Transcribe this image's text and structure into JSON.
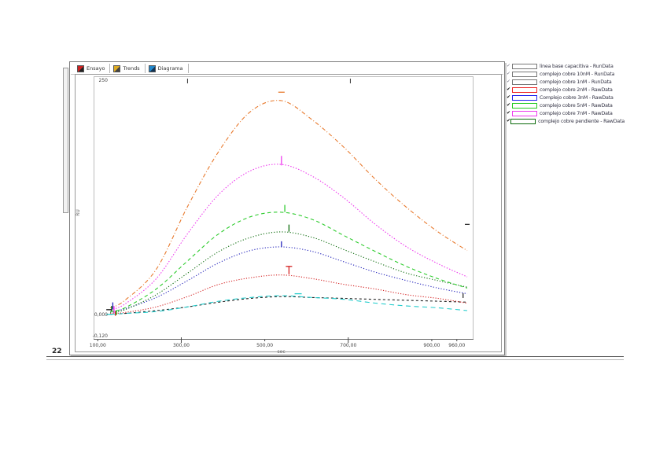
{
  "page_number": "22",
  "window": {
    "tabs": [
      {
        "label": "Ensayo",
        "icon": "chart-red"
      },
      {
        "label": "Trends",
        "icon": "chart-yellow"
      },
      {
        "label": "Diagrama",
        "icon": "chart-blue"
      }
    ]
  },
  "legend": {
    "items": [
      {
        "check": "✓",
        "checked": false,
        "color": "#777777",
        "label": "linea base capacitiva - RunData"
      },
      {
        "check": "✓",
        "checked": false,
        "color": "#777777",
        "label": "complejo cobre 10nM - RunData"
      },
      {
        "check": "✓",
        "checked": false,
        "color": "#777777",
        "label": "complejo cobre 1nM - RunData"
      },
      {
        "check": "✔",
        "checked": true,
        "color": "#ee2222",
        "label": "complejo cobre 2nM - RawData"
      },
      {
        "check": "✔",
        "checked": true,
        "color": "#2222ee",
        "label": "Complejo cobre 3nM - RawData"
      },
      {
        "check": "✔",
        "checked": true,
        "color": "#22cc22",
        "label": "complejo cobre 5nM - RawData"
      },
      {
        "check": "✔",
        "checked": true,
        "color": "#ee3bee",
        "label": "complejo cobre 7nM - RawData"
      },
      {
        "check": "✔",
        "checked": true,
        "color": "#0a6a0a",
        "label": "complejo cobre pendiente - RawData"
      }
    ]
  },
  "chart_data": {
    "type": "line",
    "title": "",
    "xlabel": "sec",
    "ylabel": "RU",
    "xlim": [
      90,
      1000
    ],
    "ylim": [
      -26,
      255
    ],
    "grid": false,
    "legend_position": "outside-right",
    "x_ticks": [
      {
        "value": 100,
        "label": "100,00"
      },
      {
        "value": 300,
        "label": "300,00"
      },
      {
        "value": 500,
        "label": "500,00"
      },
      {
        "value": 700,
        "label": "700,00"
      },
      {
        "value": 900,
        "label": "900,00"
      },
      {
        "value": 960,
        "label": "960,00"
      }
    ],
    "y_ticks": [
      {
        "value": 250,
        "label": "250"
      },
      {
        "value": 0,
        "label": "0,000"
      },
      {
        "value": -22.6,
        "label": "-0,120"
      }
    ],
    "top_ticks": [
      315,
      705
    ],
    "bottom_major_ticks": [
      300,
      700
    ],
    "x": [
      130,
      165,
      240,
      315,
      390,
      465,
      540,
      615,
      690,
      765,
      840,
      915,
      985
    ],
    "series": [
      {
        "name": "linea base capacitiva - RunData",
        "color": "#222222",
        "dash": "3 3",
        "values": [
          1,
          2,
          5,
          9,
          14,
          18,
          20,
          19,
          18,
          17,
          16,
          15,
          14
        ]
      },
      {
        "name": "complejo cobre 1nM - RunData",
        "color": "#22cccc",
        "dash": "6 4.5",
        "values": [
          1,
          2,
          4,
          9,
          15,
          19,
          21,
          19,
          17,
          13,
          10,
          8,
          5
        ]
      },
      {
        "name": "complejo cobre 2nM - RawData",
        "color": "#d42222",
        "dash": "1.2 2",
        "values": [
          2,
          3,
          9,
          20,
          33,
          40,
          43,
          39,
          33,
          28,
          22,
          18,
          13
        ]
      },
      {
        "name": "Complejo cobre 3nM - RawData",
        "color": "#2222bb",
        "dash": "1.2 2.2",
        "values": [
          4,
          7,
          19,
          37,
          56,
          69,
          73,
          68,
          57,
          46,
          37,
          29,
          23
        ]
      },
      {
        "name": "complejo cobre pendiente - RawData",
        "color": "#0a6a0a",
        "dash": "1.2 2.2",
        "values": [
          3,
          6,
          22,
          45,
          68,
          83,
          89,
          83,
          70,
          57,
          45,
          37,
          30
        ]
      },
      {
        "name": "complejo cobre 5nM - RawData",
        "color": "#2ecc2e",
        "dash": "4.5 3.5",
        "values": [
          4,
          8,
          28,
          58,
          87,
          105,
          110,
          102,
          85,
          68,
          52,
          39,
          29
        ]
      },
      {
        "name": "complejo cobre 7nM - RawData",
        "color": "#ee3bee",
        "dash": "1.5 2",
        "values": [
          6,
          12,
          39,
          87,
          129,
          154,
          161,
          148,
          125,
          97,
          73,
          55,
          41
        ]
      },
      {
        "name": "complejo cobre 10nM - RunData",
        "color": "#e87a2e",
        "dash": "5 2.5 1 2.5",
        "values": [
          8,
          16,
          49,
          116,
          175,
          217,
          229,
          208,
          179,
          145,
          115,
          89,
          69
        ]
      }
    ],
    "markers": [
      {
        "type": "hline",
        "x": 540,
        "y": 238,
        "len": 8,
        "color": "#e87a2e"
      },
      {
        "type": "vline",
        "x": 540,
        "y": 165,
        "len": 12,
        "color": "#ee3bee"
      },
      {
        "type": "vline",
        "x": 548,
        "y": 114,
        "len": 9,
        "color": "#2ecc2e"
      },
      {
        "type": "vline",
        "x": 558,
        "y": 93,
        "len": 9,
        "color": "#0a6a0a"
      },
      {
        "type": "vline",
        "x": 540,
        "y": 76,
        "len": 7,
        "color": "#2222bb"
      },
      {
        "type": "tmark",
        "x": 558,
        "y": 48,
        "len": 10,
        "color": "#d42222"
      },
      {
        "type": "hline",
        "x": 580,
        "y": 23,
        "len": 9,
        "color": "#22cccc"
      },
      {
        "type": "vline",
        "x": 136,
        "y": 10,
        "len": 9,
        "color": "#2222bb"
      },
      {
        "type": "vline",
        "x": 139,
        "y": 6,
        "len": 9,
        "color": "#ee3bee"
      },
      {
        "type": "vline",
        "x": 133,
        "y": 7,
        "len": 7,
        "color": "#0a6a0a"
      },
      {
        "type": "vline",
        "x": 142,
        "y": 2,
        "len": 6,
        "color": "#d42222"
      },
      {
        "type": "vline",
        "x": 145,
        "y": 3,
        "len": 6,
        "color": "#2ecc2e"
      },
      {
        "type": "hline",
        "x": 127,
        "y": 6,
        "len": 7,
        "color": "#111111"
      },
      {
        "type": "hline",
        "x": 127,
        "y": 1,
        "len": 7,
        "color": "#22cccc"
      },
      {
        "type": "hline",
        "x": 985,
        "y": 97,
        "len": 6,
        "color": "#333333"
      },
      {
        "type": "vline",
        "x": 975,
        "y": 21,
        "len": 6,
        "color": "#333333"
      }
    ]
  }
}
